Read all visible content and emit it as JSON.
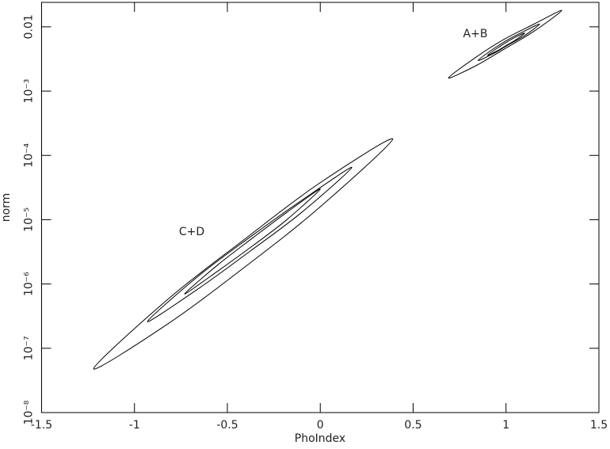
{
  "chart_data": {
    "type": "contour",
    "x_label": "PhoIndex",
    "y_label": "norm",
    "xlim": [
      -1.5,
      1.5
    ],
    "xticks": [
      -1.5,
      -1,
      -0.5,
      0,
      0.5,
      1,
      1.5
    ],
    "ylim": [
      1e-08,
      0.024
    ],
    "ylog": true,
    "yticks": [
      {
        "value": 1e-08,
        "label": "10⁻⁸"
      },
      {
        "value": 1e-07,
        "label": "10⁻⁷"
      },
      {
        "value": 1e-06,
        "label": "10⁻⁶"
      },
      {
        "value": 1e-05,
        "label": "10⁻⁵"
      },
      {
        "value": 0.0001,
        "label": "10⁻⁴"
      },
      {
        "value": 0.001,
        "label": "10⁻³"
      },
      0.01
    ],
    "color": "#000000",
    "annotations": [
      "A+B",
      "C+D"
    ],
    "contours": [
      {
        "x": [
          -1.22,
          -0.82,
          -0.41,
          -0.01,
          0.39,
          -0.01,
          -0.41,
          -0.82
        ],
        "y": [
          4.8e-08,
          5.8e-07,
          4.9e-06,
          3.6e-05,
          0.00018,
          1.5e-05,
          1.8e-06,
          2.4e-07
        ]
      },
      {
        "x": [
          -0.93,
          -0.66,
          -0.38,
          -0.1,
          0.17,
          -0.1,
          -0.38,
          -0.66
        ],
        "y": [
          2.6e-07,
          1.3e-06,
          5.3e-06,
          2e-05,
          6.5e-05,
          1.3e-05,
          3.2e-06,
          8.3e-07
        ]
      },
      {
        "x": [
          -0.73,
          -0.55,
          -0.36,
          -0.18,
          0,
          -0.18,
          -0.36,
          -0.55
        ],
        "y": [
          7e-07,
          2e-06,
          5.3e-06,
          1.3e-05,
          3e-05,
          1e-05,
          4e-06,
          1.6e-06
        ]
      },
      {
        "x": [
          0.69,
          0.84,
          0.99,
          1.15,
          1.3,
          1.15,
          0.99,
          0.84
        ],
        "y": [
          0.0016,
          0.0034,
          0.0064,
          0.011,
          0.018,
          0.0085,
          0.0045,
          0.0025
        ]
      },
      {
        "x": [
          0.85,
          0.93,
          1.01,
          1.1,
          1.18,
          1.1,
          1.01,
          0.93
        ],
        "y": [
          0.003,
          0.0045,
          0.0063,
          0.0086,
          0.011,
          0.0073,
          0.0052,
          0.0038
        ]
      },
      {
        "x": [
          0.9,
          0.95,
          1.0,
          1.05,
          1.1,
          1.05,
          1.0,
          0.95
        ],
        "y": [
          0.0036,
          0.0046,
          0.0057,
          0.0069,
          0.008,
          0.0062,
          0.0051,
          0.0042
        ]
      }
    ]
  }
}
